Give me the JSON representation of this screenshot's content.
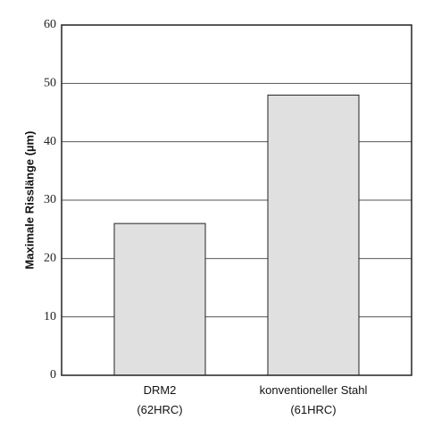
{
  "chart_data": {
    "type": "bar",
    "y_label": "Maximale Risslänge (µm)",
    "categories": [
      "DRM2\n(62HRC)",
      "konventioneller Stahl\n(61HRC)"
    ],
    "values": [
      26,
      48
    ],
    "color": "#e0e0e0",
    "ylim": [
      0,
      60
    ],
    "yticks": [
      0,
      10,
      20,
      30,
      40,
      50,
      60
    ],
    "grid": true
  }
}
